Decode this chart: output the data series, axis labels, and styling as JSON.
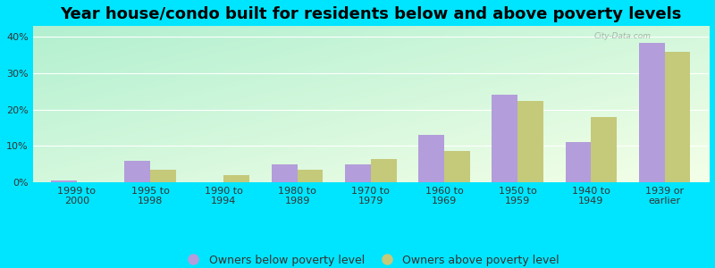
{
  "title": "Year house/condo built for residents below and above poverty levels",
  "categories": [
    "1999 to\n2000",
    "1995 to\n1998",
    "1990 to\n1994",
    "1980 to\n1989",
    "1970 to\n1979",
    "1960 to\n1969",
    "1950 to\n1959",
    "1940 to\n1949",
    "1939 or\nearlier"
  ],
  "below_poverty": [
    0.5,
    6.0,
    0.0,
    5.0,
    5.0,
    13.0,
    24.0,
    11.0,
    38.5
  ],
  "above_poverty": [
    0.0,
    3.5,
    2.0,
    3.5,
    6.5,
    8.5,
    22.5,
    18.0,
    36.0
  ],
  "bar_color_below": "#b39ddb",
  "bar_color_above": "#c5c97a",
  "background_color_outer": "#00e5ff",
  "grad_top_left": "#b2f0d0",
  "grad_bottom_right": "#f5ffe8",
  "ylim": [
    0,
    43
  ],
  "yticks": [
    0,
    10,
    20,
    30,
    40
  ],
  "ytick_labels": [
    "0%",
    "10%",
    "20%",
    "30%",
    "40%"
  ],
  "legend_below_label": "Owners below poverty level",
  "legend_above_label": "Owners above poverty level",
  "title_fontsize": 13,
  "tick_fontsize": 8,
  "legend_fontsize": 9,
  "bar_width": 0.35
}
